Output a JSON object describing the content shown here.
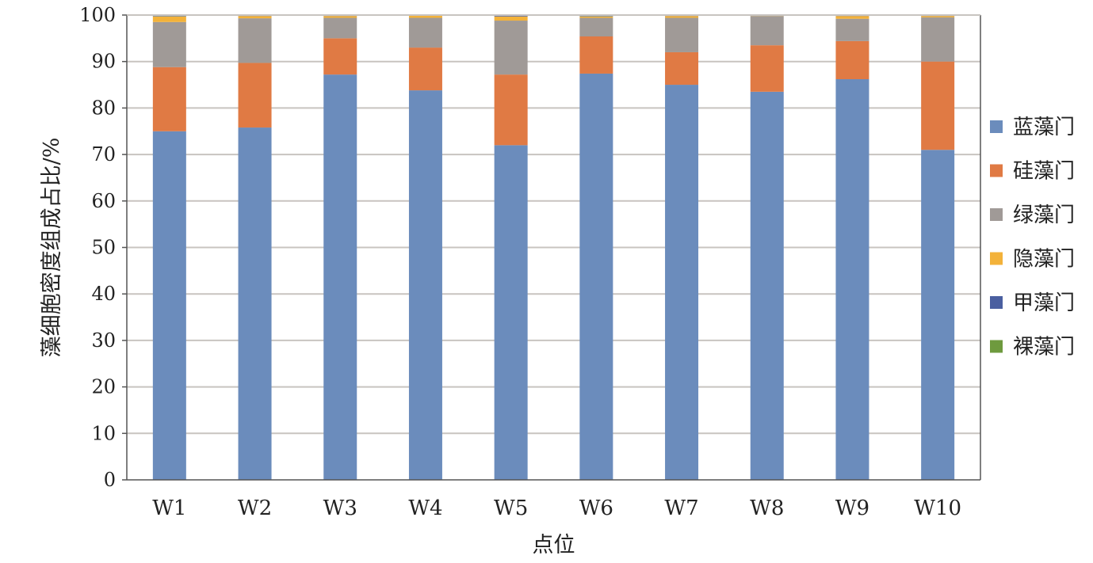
{
  "chart_data": {
    "type": "bar",
    "stacked": true,
    "title": "",
    "xlabel": "点位",
    "ylabel": "藻细胞密度组成占比/%",
    "ylim": [
      0,
      100
    ],
    "yticks": [
      0,
      10,
      20,
      30,
      40,
      50,
      60,
      70,
      80,
      90,
      100
    ],
    "grid": true,
    "legend_position": "right",
    "categories": [
      "W1",
      "W2",
      "W3",
      "W4",
      "W5",
      "W6",
      "W7",
      "W8",
      "W9",
      "W10"
    ],
    "series": [
      {
        "name": "蓝藻门",
        "color": "#6b8cbc",
        "values": [
          75.0,
          75.8,
          87.2,
          83.8,
          72.0,
          87.4,
          85.0,
          83.5,
          86.2,
          71.0
        ]
      },
      {
        "name": "硅藻门",
        "color": "#e07a44",
        "values": [
          13.8,
          13.9,
          7.8,
          9.2,
          15.2,
          8.0,
          7.0,
          10.0,
          8.2,
          19.0
        ]
      },
      {
        "name": "绿藻门",
        "color": "#a09a97",
        "values": [
          9.7,
          9.6,
          4.4,
          6.4,
          11.6,
          4.0,
          7.4,
          6.3,
          4.8,
          9.5
        ]
      },
      {
        "name": "隐藻门",
        "color": "#f3b23a",
        "values": [
          1.2,
          0.5,
          0.4,
          0.5,
          0.9,
          0.3,
          0.4,
          0.1,
          0.6,
          0.3
        ]
      },
      {
        "name": "甲藻门",
        "color": "#4a5fa0",
        "values": [
          0.1,
          0.1,
          0.1,
          0.0,
          0.2,
          0.1,
          0.1,
          0.0,
          0.1,
          0.1
        ]
      },
      {
        "name": "裸藻门",
        "color": "#6e9a3e",
        "values": [
          0.2,
          0.1,
          0.1,
          0.1,
          0.1,
          0.2,
          0.1,
          0.1,
          0.1,
          0.1
        ]
      }
    ]
  }
}
